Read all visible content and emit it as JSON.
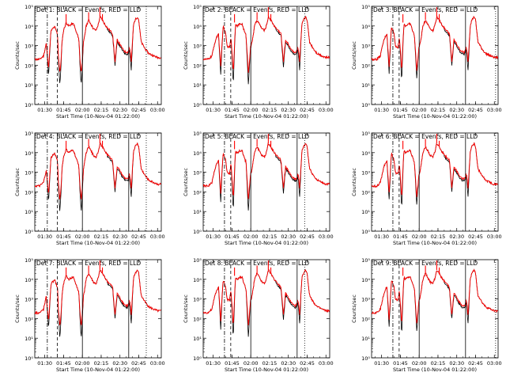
{
  "figure": {
    "title": "",
    "background": "#ffffff",
    "colors": {
      "events": "#000000",
      "lld": "#ff0000",
      "frame": "#000000"
    }
  },
  "chart_data": [
    {
      "type": "line",
      "title": "Det 1: BLACK = Events, RED = LLD",
      "xlabel": "Start Time (10-Nov-04 01:22:00)",
      "ylabel": "Counts/sec",
      "log_y": true,
      "ylim": [
        1,
        100000
      ],
      "xlim": [
        "01:22",
        "03:03"
      ],
      "x_ticks": [
        "01:30",
        "01:45",
        "02:00",
        "02:15",
        "02:30",
        "02:45",
        "03:00"
      ],
      "y_ticks": [
        "10^0",
        "10^1",
        "10^2",
        "10^3",
        "10^4",
        "10^5"
      ],
      "markers": [
        {
          "time": "01:32",
          "style": "dash-dot"
        },
        {
          "time": "01:40",
          "style": "dashed"
        },
        {
          "time": "02:00",
          "style": "solid"
        },
        {
          "time": "02:37",
          "style": "solid"
        },
        {
          "time": "02:51",
          "style": "dotted"
        }
      ],
      "series": [
        {
          "name": "Events",
          "color": "#000000"
        },
        {
          "name": "LLD",
          "color": "#ff0000"
        }
      ],
      "dips": [
        {
          "time": "01:33",
          "ev": 30,
          "lld": 70
        },
        {
          "time": "01:42",
          "ev": 10,
          "lld": 40
        },
        {
          "time": "01:59",
          "ev": 10,
          "lld": 40
        },
        {
          "time": "02:26",
          "ev": 120,
          "lld": 150
        },
        {
          "time": "02:39",
          "ev": 70,
          "lld": 150
        }
      ]
    },
    {
      "type": "line",
      "title": "Det 2: BLACK = Events, RED = LLD",
      "xlabel": "Start Time (10-Nov-04 01:22:00)",
      "ylabel": "Counts/sec",
      "log_y": true,
      "ylim": [
        1,
        100000
      ],
      "xlim": [
        "01:22",
        "03:03"
      ],
      "x_ticks": [
        "01:30",
        "01:45",
        "02:00",
        "02:15",
        "02:30",
        "02:45",
        "03:00"
      ],
      "y_ticks": [
        "10^0",
        "10^1",
        "10^2",
        "10^3",
        "10^4",
        "10^5"
      ],
      "markers": [
        {
          "time": "01:39",
          "style": "dash-dot"
        },
        {
          "time": "01:44",
          "style": "dashed"
        },
        {
          "time": "02:00",
          "style": "solid"
        },
        {
          "time": "02:37",
          "style": "solid"
        },
        {
          "time": "02:43",
          "style": "dotted"
        }
      ],
      "series": [
        {
          "name": "Events",
          "color": "#000000"
        },
        {
          "name": "LLD",
          "color": "#ff0000"
        }
      ],
      "dips": [
        {
          "time": "01:36",
          "ev": 30,
          "lld": 80
        },
        {
          "time": "01:46",
          "ev": 10,
          "lld": 40
        },
        {
          "time": "01:58",
          "ev": 10,
          "lld": 40
        },
        {
          "time": "02:26",
          "ev": 100,
          "lld": 150
        },
        {
          "time": "02:39",
          "ev": 70,
          "lld": 150
        }
      ]
    },
    {
      "type": "line",
      "title": "Det 3: BLACK = Events, RED = LLD",
      "xlabel": "Start Time (10-Nov-04 01:22:00)",
      "ylabel": "Counts/sec",
      "log_y": true,
      "ylim": [
        1,
        100000
      ],
      "xlim": [
        "01:22",
        "03:03"
      ],
      "x_ticks": [
        "01:30",
        "01:45",
        "02:00",
        "02:15",
        "02:30",
        "02:45",
        "03:00"
      ],
      "y_ticks": [
        "10^0",
        "10^1",
        "10^2",
        "10^3",
        "10^4",
        "10^5"
      ],
      "markers": [
        {
          "time": "01:39",
          "style": "dash-dot"
        },
        {
          "time": "01:44",
          "style": "dashed"
        },
        {
          "time": "02:00",
          "style": "solid"
        },
        {
          "time": "02:37",
          "style": "solid"
        },
        {
          "time": "03:01",
          "style": "dotted"
        }
      ],
      "series": [
        {
          "name": "Events",
          "color": "#000000"
        },
        {
          "name": "LLD",
          "color": "#ff0000"
        }
      ],
      "dips": [
        {
          "time": "01:36",
          "ev": 40,
          "lld": 90
        },
        {
          "time": "01:46",
          "ev": 15,
          "lld": 50
        },
        {
          "time": "01:58",
          "ev": 20,
          "lld": 50
        },
        {
          "time": "02:26",
          "ev": 120,
          "lld": 150
        },
        {
          "time": "02:39",
          "ev": 70,
          "lld": 150
        }
      ]
    },
    {
      "type": "line",
      "title": "Det 4: BLACK = Events, RED = LLD",
      "xlabel": "Start Time (10-Nov-04 01:22:00)",
      "ylabel": "Counts/sec",
      "log_y": true,
      "ylim": [
        1,
        100000
      ],
      "xlim": [
        "01:22",
        "03:03"
      ],
      "x_ticks": [
        "01:30",
        "01:45",
        "02:00",
        "02:15",
        "02:30",
        "02:45",
        "03:00"
      ],
      "y_ticks": [
        "10^0",
        "10^1",
        "10^2",
        "10^3",
        "10^4",
        "10^5"
      ],
      "markers": [
        {
          "time": "01:32",
          "style": "dash-dot"
        },
        {
          "time": "01:40",
          "style": "dashed"
        },
        {
          "time": "02:00",
          "style": "solid"
        },
        {
          "time": "02:37",
          "style": "solid"
        },
        {
          "time": "02:51",
          "style": "dotted"
        }
      ],
      "series": [
        {
          "name": "Events",
          "color": "#000000"
        },
        {
          "name": "LLD",
          "color": "#ff0000"
        }
      ],
      "dips": [
        {
          "time": "01:33",
          "ev": 30,
          "lld": 70
        },
        {
          "time": "01:42",
          "ev": 10,
          "lld": 40
        },
        {
          "time": "01:59",
          "ev": 10,
          "lld": 40
        },
        {
          "time": "02:26",
          "ev": 120,
          "lld": 150
        },
        {
          "time": "02:39",
          "ev": 70,
          "lld": 150
        }
      ]
    },
    {
      "type": "line",
      "title": "Det 5: BLACK = Events, RED = LLD",
      "xlabel": "Start Time (10-Nov-04 01:22:00)",
      "ylabel": "Counts/sec",
      "log_y": true,
      "ylim": [
        1,
        100000
      ],
      "xlim": [
        "01:22",
        "03:03"
      ],
      "x_ticks": [
        "01:30",
        "01:45",
        "02:00",
        "02:15",
        "02:30",
        "02:45",
        "03:00"
      ],
      "y_ticks": [
        "10^0",
        "10^1",
        "10^2",
        "10^3",
        "10^4",
        "10^5"
      ],
      "markers": [
        {
          "time": "01:39",
          "style": "dash-dot"
        },
        {
          "time": "01:44",
          "style": "dashed"
        },
        {
          "time": "02:00",
          "style": "solid"
        },
        {
          "time": "02:37",
          "style": "solid"
        },
        {
          "time": "02:43",
          "style": "dotted"
        }
      ],
      "series": [
        {
          "name": "Events",
          "color": "#000000"
        },
        {
          "name": "LLD",
          "color": "#ff0000"
        }
      ],
      "dips": [
        {
          "time": "01:36",
          "ev": 30,
          "lld": 80
        },
        {
          "time": "01:46",
          "ev": 10,
          "lld": 40
        },
        {
          "time": "01:58",
          "ev": 10,
          "lld": 40
        },
        {
          "time": "02:26",
          "ev": 100,
          "lld": 150
        },
        {
          "time": "02:39",
          "ev": 70,
          "lld": 150
        }
      ]
    },
    {
      "type": "line",
      "title": "Det 6: BLACK = Events, RED = LLD",
      "xlabel": "Start Time (10-Nov-04 01:22:00)",
      "ylabel": "Counts/sec",
      "log_y": true,
      "ylim": [
        1,
        100000
      ],
      "xlim": [
        "01:22",
        "03:03"
      ],
      "x_ticks": [
        "01:30",
        "01:45",
        "02:00",
        "02:15",
        "02:30",
        "02:45",
        "03:00"
      ],
      "y_ticks": [
        "10^0",
        "10^1",
        "10^2",
        "10^3",
        "10^4",
        "10^5"
      ],
      "markers": [
        {
          "time": "01:39",
          "style": "dash-dot"
        },
        {
          "time": "01:44",
          "style": "dashed"
        },
        {
          "time": "02:00",
          "style": "solid"
        },
        {
          "time": "02:37",
          "style": "solid"
        },
        {
          "time": "03:01",
          "style": "dotted"
        }
      ],
      "series": [
        {
          "name": "Events",
          "color": "#000000"
        },
        {
          "name": "LLD",
          "color": "#ff0000"
        }
      ],
      "dips": [
        {
          "time": "01:36",
          "ev": 40,
          "lld": 90
        },
        {
          "time": "01:46",
          "ev": 15,
          "lld": 50
        },
        {
          "time": "01:58",
          "ev": 20,
          "lld": 50
        },
        {
          "time": "02:26",
          "ev": 120,
          "lld": 150
        },
        {
          "time": "02:39",
          "ev": 70,
          "lld": 150
        }
      ]
    },
    {
      "type": "line",
      "title": "Det 7: BLACK = Events, RED = LLD",
      "xlabel": "Start Time (10-Nov-04 01:22:00)",
      "ylabel": "Counts/sec",
      "log_y": true,
      "ylim": [
        1,
        100000
      ],
      "xlim": [
        "01:22",
        "03:03"
      ],
      "x_ticks": [
        "01:30",
        "01:45",
        "02:00",
        "02:15",
        "02:30",
        "02:45",
        "03:00"
      ],
      "y_ticks": [
        "10^0",
        "10^1",
        "10^2",
        "10^3",
        "10^4",
        "10^5"
      ],
      "markers": [
        {
          "time": "01:32",
          "style": "dash-dot"
        },
        {
          "time": "01:40",
          "style": "dashed"
        },
        {
          "time": "02:00",
          "style": "solid"
        },
        {
          "time": "02:37",
          "style": "solid"
        },
        {
          "time": "02:51",
          "style": "dotted"
        }
      ],
      "series": [
        {
          "name": "Events",
          "color": "#000000"
        },
        {
          "name": "LLD",
          "color": "#ff0000"
        }
      ],
      "dips": [
        {
          "time": "01:33",
          "ev": 30,
          "lld": 70
        },
        {
          "time": "01:42",
          "ev": 10,
          "lld": 40
        },
        {
          "time": "01:59",
          "ev": 10,
          "lld": 40
        },
        {
          "time": "02:26",
          "ev": 120,
          "lld": 150
        },
        {
          "time": "02:39",
          "ev": 70,
          "lld": 150
        }
      ]
    },
    {
      "type": "line",
      "title": "Det 8: BLACK = Events, RED = LLD",
      "xlabel": "Start Time (10-Nov-04 01:22:00)",
      "ylabel": "Counts/sec",
      "log_y": true,
      "ylim": [
        1,
        100000
      ],
      "xlim": [
        "01:22",
        "03:03"
      ],
      "x_ticks": [
        "01:30",
        "01:45",
        "02:00",
        "02:15",
        "02:30",
        "02:45",
        "03:00"
      ],
      "y_ticks": [
        "10^0",
        "10^1",
        "10^2",
        "10^3",
        "10^4",
        "10^5"
      ],
      "markers": [
        {
          "time": "01:39",
          "style": "dash-dot"
        },
        {
          "time": "01:44",
          "style": "dashed"
        },
        {
          "time": "02:00",
          "style": "solid"
        },
        {
          "time": "02:37",
          "style": "solid"
        },
        {
          "time": "02:43",
          "style": "dotted"
        }
      ],
      "series": [
        {
          "name": "Events",
          "color": "#000000"
        },
        {
          "name": "LLD",
          "color": "#ff0000"
        }
      ],
      "dips": [
        {
          "time": "01:36",
          "ev": 30,
          "lld": 80
        },
        {
          "time": "01:46",
          "ev": 10,
          "lld": 40
        },
        {
          "time": "01:58",
          "ev": 10,
          "lld": 40
        },
        {
          "time": "02:26",
          "ev": 100,
          "lld": 150
        },
        {
          "time": "02:39",
          "ev": 70,
          "lld": 150
        }
      ]
    },
    {
      "type": "line",
      "title": "Det 9: BLACK = Events, RED = LLD",
      "xlabel": "Start Time (10-Nov-04 01:22:00)",
      "ylabel": "Counts/sec",
      "log_y": true,
      "ylim": [
        1,
        100000
      ],
      "xlim": [
        "01:22",
        "03:03"
      ],
      "x_ticks": [
        "01:30",
        "01:45",
        "02:00",
        "02:15",
        "02:30",
        "02:45",
        "03:00"
      ],
      "y_ticks": [
        "10^0",
        "10^1",
        "10^2",
        "10^3",
        "10^4",
        "10^5"
      ],
      "markers": [
        {
          "time": "01:39",
          "style": "dash-dot"
        },
        {
          "time": "01:44",
          "style": "dashed"
        },
        {
          "time": "02:00",
          "style": "solid"
        },
        {
          "time": "02:37",
          "style": "solid"
        },
        {
          "time": "03:01",
          "style": "dotted"
        }
      ],
      "series": [
        {
          "name": "Events",
          "color": "#000000"
        },
        {
          "name": "LLD",
          "color": "#ff0000"
        }
      ],
      "dips": [
        {
          "time": "01:36",
          "ev": 40,
          "lld": 90
        },
        {
          "time": "01:46",
          "ev": 15,
          "lld": 50
        },
        {
          "time": "01:58",
          "ev": 20,
          "lld": 50
        },
        {
          "time": "02:26",
          "ev": 120,
          "lld": 150
        },
        {
          "time": "02:39",
          "ev": 70,
          "lld": 150
        }
      ]
    }
  ],
  "lld_profile": [
    [
      "01:22",
      200
    ],
    [
      "01:26",
      200
    ],
    [
      "01:29",
      300
    ],
    [
      "01:31",
      1200
    ],
    [
      "01:32",
      2000
    ],
    [
      "01:34",
      4000
    ],
    [
      "01:36",
      7000
    ],
    [
      "01:38",
      9000
    ],
    [
      "01:40",
      4000
    ],
    [
      "01:41",
      1000
    ],
    [
      "01:43",
      800
    ],
    [
      "01:45",
      6000
    ],
    [
      "01:47",
      15000
    ],
    [
      "01:49",
      10000
    ],
    [
      "01:51",
      12000
    ],
    [
      "01:53",
      13000
    ],
    [
      "01:55",
      5000
    ],
    [
      "01:57",
      2500
    ],
    [
      "01:58",
      1000
    ],
    [
      "02:00",
      800
    ],
    [
      "02:01",
      1500
    ],
    [
      "02:03",
      10000
    ],
    [
      "02:05",
      20000
    ],
    [
      "02:07",
      12000
    ],
    [
      "02:09",
      7000
    ],
    [
      "02:11",
      6000
    ],
    [
      "02:12",
      9000
    ],
    [
      "02:13",
      14000
    ],
    [
      "02:14",
      30000
    ],
    [
      "02:16",
      20000
    ],
    [
      "02:18",
      12000
    ],
    [
      "02:20",
      8000
    ],
    [
      "02:23",
      5000
    ],
    [
      "02:26",
      3000
    ],
    [
      "02:29",
      1500
    ],
    [
      "02:32",
      700
    ],
    [
      "02:34",
      500
    ],
    [
      "02:36",
      450
    ],
    [
      "02:37",
      600
    ],
    [
      "02:38",
      3000
    ],
    [
      "02:40",
      8000
    ],
    [
      "02:42",
      20000
    ],
    [
      "02:44",
      30000
    ],
    [
      "02:45",
      20000
    ],
    [
      "02:46",
      5000
    ],
    [
      "02:47",
      1500
    ],
    [
      "02:50",
      700
    ],
    [
      "02:53",
      400
    ],
    [
      "02:57",
      300
    ],
    [
      "03:00",
      250
    ],
    [
      "03:03",
      250
    ]
  ],
  "spikes": [
    [
      "01:47",
      40000
    ],
    [
      "02:05",
      50000
    ],
    [
      "02:14",
      90000
    ],
    [
      "02:16",
      40000
    ]
  ]
}
